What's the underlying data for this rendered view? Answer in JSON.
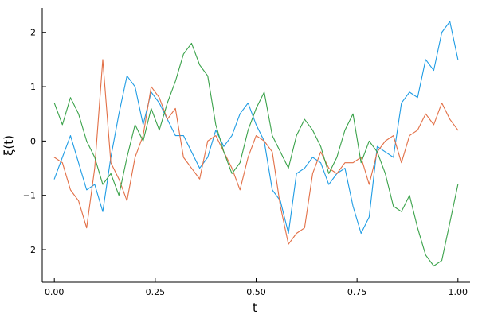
{
  "chart_data": {
    "type": "line",
    "title": "",
    "xlabel": "t",
    "ylabel": "ξ(t)",
    "xlim": [
      -0.03,
      1.03
    ],
    "ylim": [
      -2.6,
      2.45
    ],
    "xticks": [
      0.0,
      0.25,
      0.5,
      0.75,
      1.0
    ],
    "xtick_labels": [
      "0.00",
      "0.25",
      "0.50",
      "0.75",
      "1.00"
    ],
    "yticks": [
      -2,
      -1,
      0,
      1,
      2
    ],
    "ytick_labels": [
      "−2",
      "−1",
      "0",
      "1",
      "2"
    ],
    "grid": false,
    "legend": "none",
    "series": [
      {
        "color": "#1f9ce4",
        "x": [
          0.0,
          0.02,
          0.04,
          0.06,
          0.08,
          0.1,
          0.12,
          0.14,
          0.16,
          0.18,
          0.2,
          0.22,
          0.24,
          0.26,
          0.28,
          0.3,
          0.32,
          0.34,
          0.36,
          0.38,
          0.4,
          0.42,
          0.44,
          0.46,
          0.48,
          0.5,
          0.52,
          0.54,
          0.56,
          0.58,
          0.6,
          0.62,
          0.64,
          0.66,
          0.68,
          0.7,
          0.72,
          0.74,
          0.76,
          0.78,
          0.8,
          0.82,
          0.84,
          0.86,
          0.88,
          0.9,
          0.92,
          0.94,
          0.96,
          0.98,
          1.0
        ],
        "y": [
          -0.7,
          -0.3,
          0.1,
          -0.4,
          -0.9,
          -0.8,
          -1.3,
          -0.3,
          0.5,
          1.2,
          1.0,
          0.3,
          0.9,
          0.7,
          0.4,
          0.1,
          0.1,
          -0.2,
          -0.5,
          -0.3,
          0.2,
          -0.1,
          0.1,
          0.5,
          0.7,
          0.3,
          0.0,
          -0.9,
          -1.1,
          -1.7,
          -0.6,
          -0.5,
          -0.3,
          -0.4,
          -0.8,
          -0.6,
          -0.5,
          -1.2,
          -1.7,
          -1.4,
          -0.1,
          -0.2,
          -0.3,
          0.7,
          0.9,
          0.8,
          1.5,
          1.3,
          2.0,
          2.2,
          1.5
        ]
      },
      {
        "color": "#e26f46",
        "x": [
          0.0,
          0.02,
          0.04,
          0.06,
          0.08,
          0.1,
          0.12,
          0.14,
          0.16,
          0.18,
          0.2,
          0.22,
          0.24,
          0.26,
          0.28,
          0.3,
          0.32,
          0.34,
          0.36,
          0.38,
          0.4,
          0.42,
          0.44,
          0.46,
          0.48,
          0.5,
          0.52,
          0.54,
          0.56,
          0.58,
          0.6,
          0.62,
          0.64,
          0.66,
          0.68,
          0.7,
          0.72,
          0.74,
          0.76,
          0.78,
          0.8,
          0.82,
          0.84,
          0.86,
          0.88,
          0.9,
          0.92,
          0.94,
          0.96,
          0.98,
          1.0
        ],
        "y": [
          -0.3,
          -0.4,
          -0.9,
          -1.1,
          -1.6,
          -0.5,
          1.5,
          -0.4,
          -0.7,
          -1.1,
          -0.3,
          0.1,
          1.0,
          0.8,
          0.4,
          0.6,
          -0.3,
          -0.5,
          -0.7,
          0.0,
          0.1,
          -0.2,
          -0.5,
          -0.9,
          -0.3,
          0.1,
          0.0,
          -0.2,
          -1.2,
          -1.9,
          -1.7,
          -1.6,
          -0.6,
          -0.2,
          -0.5,
          -0.6,
          -0.4,
          -0.4,
          -0.3,
          -0.8,
          -0.2,
          0.0,
          0.1,
          -0.4,
          0.1,
          0.2,
          0.5,
          0.3,
          0.7,
          0.4,
          0.2
        ]
      },
      {
        "color": "#3aa24a",
        "x": [
          0.0,
          0.02,
          0.04,
          0.06,
          0.08,
          0.1,
          0.12,
          0.14,
          0.16,
          0.18,
          0.2,
          0.22,
          0.24,
          0.26,
          0.28,
          0.3,
          0.32,
          0.34,
          0.36,
          0.38,
          0.4,
          0.42,
          0.44,
          0.46,
          0.48,
          0.5,
          0.52,
          0.54,
          0.56,
          0.58,
          0.6,
          0.62,
          0.64,
          0.66,
          0.68,
          0.7,
          0.72,
          0.74,
          0.76,
          0.78,
          0.8,
          0.82,
          0.84,
          0.86,
          0.88,
          0.9,
          0.92,
          0.94,
          0.96,
          0.98,
          1.0
        ],
        "y": [
          0.7,
          0.3,
          0.8,
          0.5,
          0.0,
          -0.3,
          -0.8,
          -0.6,
          -1.0,
          -0.3,
          0.3,
          0.0,
          0.6,
          0.2,
          0.7,
          1.1,
          1.6,
          1.8,
          1.4,
          1.2,
          0.3,
          -0.2,
          -0.6,
          -0.4,
          0.2,
          0.6,
          0.9,
          0.1,
          -0.2,
          -0.5,
          0.1,
          0.4,
          0.2,
          -0.1,
          -0.6,
          -0.3,
          0.2,
          0.5,
          -0.4,
          0.0,
          -0.2,
          -0.6,
          -1.2,
          -1.3,
          -1.0,
          -1.6,
          -2.1,
          -2.3,
          -2.2,
          -1.5,
          -0.8
        ]
      }
    ]
  }
}
